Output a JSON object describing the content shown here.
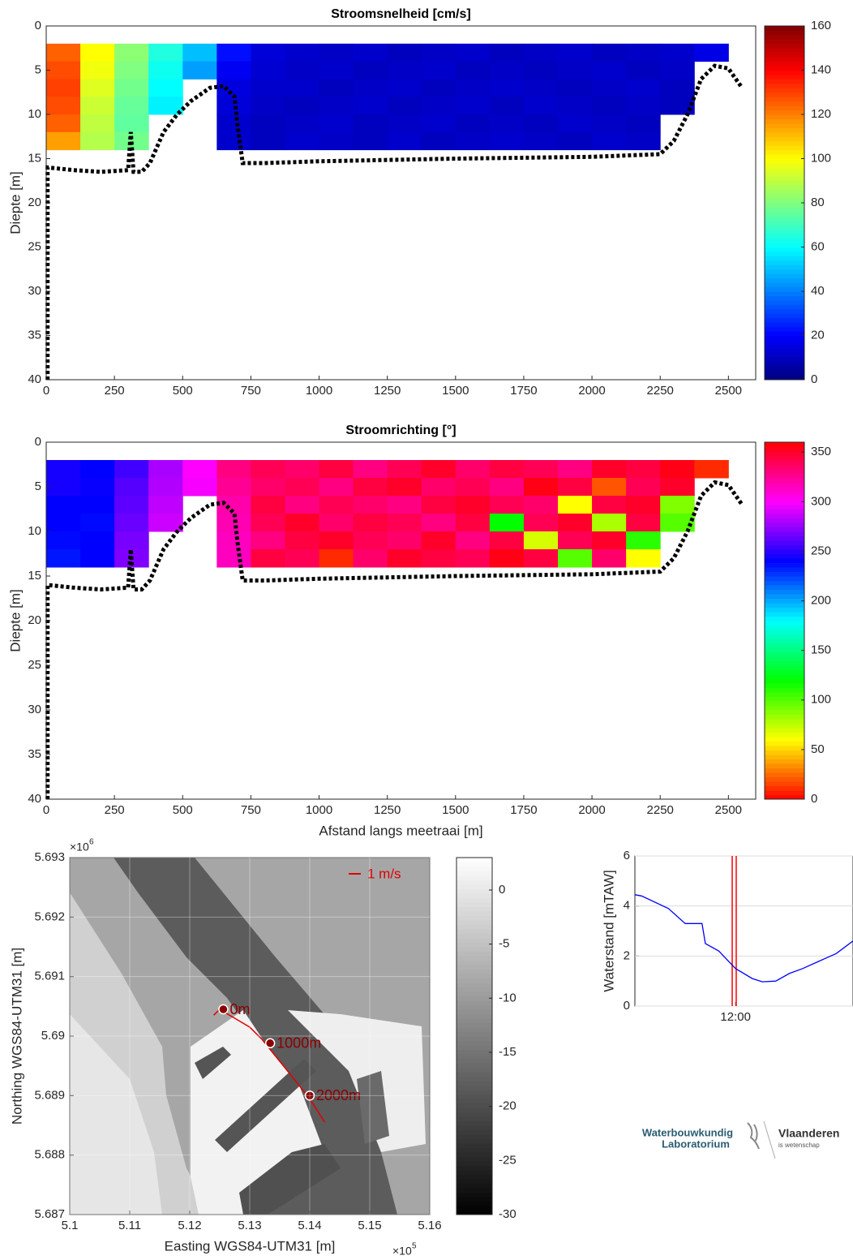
{
  "chart_data": [
    {
      "type": "heatmap",
      "title": "Stroomsnelheid [cm/s]",
      "ylabel": "Diepte [m]",
      "xlim": [
        0,
        2600
      ],
      "xticks": [
        0,
        250,
        500,
        750,
        1000,
        1250,
        1500,
        1750,
        2000,
        2250,
        2500
      ],
      "ylim": [
        0,
        40
      ],
      "yticks": [
        0,
        5,
        10,
        15,
        20,
        25,
        30,
        35,
        40
      ],
      "y_reversed": true,
      "x": [
        62.5,
        187.5,
        312.5,
        437.5,
        562.5,
        687.5,
        812.5,
        937.5,
        1062.5,
        1187.5,
        1312.5,
        1437.5,
        1562.5,
        1687.5,
        1812.5,
        1937.5,
        2062.5,
        2187.5,
        2312.5,
        2437.5
      ],
      "y": [
        3,
        5,
        7,
        9,
        11,
        13
      ],
      "z": [
        [
          125,
          100,
          82,
          65,
          50,
          22,
          14,
          12,
          11,
          12,
          10,
          11,
          12,
          10,
          11,
          12,
          10,
          11,
          12,
          16
        ],
        [
          128,
          98,
          80,
          62,
          45,
          18,
          13,
          11,
          12,
          10,
          11,
          12,
          10,
          11,
          10,
          11,
          12,
          10,
          11,
          null
        ],
        [
          130,
          95,
          78,
          60,
          null,
          15,
          12,
          12,
          10,
          11,
          12,
          10,
          11,
          12,
          11,
          10,
          11,
          12,
          10,
          null
        ],
        [
          128,
          92,
          76,
          58,
          null,
          14,
          11,
          10,
          11,
          12,
          10,
          11,
          12,
          10,
          12,
          11,
          10,
          11,
          10,
          null
        ],
        [
          125,
          90,
          75,
          null,
          null,
          12,
          10,
          11,
          12,
          10,
          11,
          12,
          10,
          11,
          10,
          12,
          11,
          10,
          null,
          null
        ],
        [
          115,
          88,
          78,
          null,
          null,
          12,
          10,
          12,
          11,
          10,
          12,
          10,
          11,
          12,
          11,
          10,
          12,
          11,
          null,
          null
        ]
      ],
      "colormap": "jet",
      "zlim": [
        0,
        160
      ],
      "zticks": [
        0,
        20,
        40,
        60,
        80,
        100,
        120,
        140,
        160
      ],
      "bed": {
        "x": [
          5,
          5,
          100,
          200,
          300,
          310,
          320,
          350,
          380,
          430,
          480,
          530,
          600,
          650,
          690,
          700,
          720,
          800,
          1000,
          1500,
          2000,
          2250,
          2300,
          2350,
          2400,
          2450,
          2500,
          2550
        ],
        "y": [
          40,
          16,
          16.3,
          16.5,
          16.3,
          12,
          16.5,
          16.5,
          15.5,
          12,
          10,
          8.5,
          7,
          6.8,
          8,
          11,
          15.5,
          15.5,
          15.3,
          15,
          14.8,
          14.5,
          13,
          10,
          6,
          4.5,
          4.8,
          7
        ]
      }
    },
    {
      "type": "heatmap",
      "title": "Stroomrichting [°]",
      "ylabel": "Diepte [m]",
      "xlabel": "Afstand langs meetraai [m]",
      "xlim": [
        0,
        2600
      ],
      "xticks": [
        0,
        250,
        500,
        750,
        1000,
        1250,
        1500,
        1750,
        2000,
        2250,
        2500
      ],
      "ylim": [
        0,
        40
      ],
      "yticks": [
        0,
        5,
        10,
        15,
        20,
        25,
        30,
        35,
        40
      ],
      "y_reversed": true,
      "x": [
        62.5,
        187.5,
        312.5,
        437.5,
        562.5,
        687.5,
        812.5,
        937.5,
        1062.5,
        1187.5,
        1312.5,
        1437.5,
        1562.5,
        1687.5,
        1812.5,
        1937.5,
        2062.5,
        2187.5,
        2312.5,
        2437.5
      ],
      "y": [
        3,
        5,
        7,
        9,
        11,
        13
      ],
      "z": [
        [
          245,
          240,
          255,
          280,
          300,
          330,
          340,
          335,
          345,
          330,
          340,
          350,
          335,
          345,
          340,
          330,
          350,
          345,
          355,
          10
        ],
        [
          245,
          242,
          260,
          282,
          298,
          325,
          335,
          340,
          330,
          345,
          350,
          335,
          340,
          330,
          355,
          345,
          20,
          340,
          350,
          null
        ],
        [
          240,
          240,
          262,
          285,
          null,
          320,
          345,
          330,
          340,
          335,
          330,
          345,
          350,
          340,
          335,
          60,
          345,
          350,
          90,
          null
        ],
        [
          240,
          238,
          265,
          288,
          null,
          318,
          340,
          350,
          335,
          345,
          340,
          330,
          345,
          120,
          340,
          350,
          80,
          345,
          100,
          null
        ],
        [
          238,
          240,
          268,
          null,
          null,
          315,
          330,
          345,
          350,
          340,
          335,
          350,
          330,
          345,
          70,
          340,
          350,
          110,
          null,
          null
        ],
        [
          235,
          240,
          270,
          null,
          null,
          315,
          345,
          340,
          10,
          335,
          350,
          345,
          340,
          355,
          345,
          100,
          335,
          60,
          null,
          null
        ]
      ],
      "colormap": "hsv",
      "zlim": [
        0,
        360
      ],
      "zticks": [
        0,
        50,
        100,
        150,
        200,
        250,
        300,
        350
      ],
      "bed": {
        "x": [
          5,
          5,
          100,
          200,
          300,
          310,
          320,
          350,
          380,
          430,
          480,
          530,
          600,
          650,
          690,
          700,
          720,
          800,
          1000,
          1500,
          2000,
          2250,
          2300,
          2350,
          2400,
          2450,
          2500,
          2550
        ],
        "y": [
          40,
          16,
          16.3,
          16.5,
          16.3,
          12,
          16.5,
          16.5,
          15.5,
          12,
          10,
          8.5,
          7,
          6.8,
          8,
          11,
          15.5,
          15.5,
          15.3,
          15,
          14.8,
          14.5,
          13,
          10,
          6,
          4.5,
          4.8,
          7
        ]
      }
    },
    {
      "type": "map",
      "xlabel": "Easting WGS84-UTM31 [m]",
      "ylabel": "Northing WGS84-UTM31 [m]",
      "xlim": [
        5.1,
        5.16
      ],
      "xticks": [
        5.1,
        5.11,
        5.12,
        5.13,
        5.14,
        5.15,
        5.16
      ],
      "x_multiplier": {
        "base": "×10",
        "exponent": "5"
      },
      "ylim": [
        5.687,
        5.693
      ],
      "yticks": [
        5.687,
        5.688,
        5.689,
        5.69,
        5.691,
        5.692,
        5.693
      ],
      "y_multiplier": {
        "base": "×10",
        "exponent": "6"
      },
      "colormap": "gray",
      "clim": [
        -30,
        3
      ],
      "cticks": [
        -30,
        -25,
        -20,
        -15,
        -10,
        -5,
        0
      ],
      "scale_label": "1 m/s",
      "track": {
        "color": "#e00000",
        "x": [
          5.124,
          5.125,
          5.1258,
          5.1275,
          5.13,
          5.132,
          5.134,
          5.136,
          5.138,
          5.14,
          5.1425
        ],
        "y": [
          5.69035,
          5.69045,
          5.6904,
          5.6903,
          5.69015,
          5.68995,
          5.6897,
          5.68945,
          5.6892,
          5.68895,
          5.68855
        ]
      },
      "stations": {
        "color": "#8b0000",
        "labels": [
          "0m",
          "1000m",
          "2000m"
        ],
        "x": [
          5.1256,
          5.1334,
          5.14
        ],
        "y": [
          5.69045,
          5.68988,
          5.689
        ]
      }
    },
    {
      "type": "line",
      "ylabel": "Waterstand [mTAW]",
      "xlim": [
        9,
        15.5
      ],
      "xticks": [
        {
          "value": 12,
          "label": "12:00"
        }
      ],
      "ylim": [
        0,
        6
      ],
      "yticks": [
        0,
        2,
        4,
        6
      ],
      "grid": true,
      "color": "#0000ff",
      "x": [
        9,
        9.2,
        10,
        10.5,
        11,
        11.1,
        11.5,
        12,
        12.5,
        12.8,
        13.2,
        13.6,
        14,
        14.5,
        15,
        15.5
      ],
      "values": [
        4.45,
        4.4,
        3.9,
        3.3,
        3.3,
        2.5,
        2.2,
        1.5,
        1.1,
        0.97,
        1.0,
        1.3,
        1.5,
        1.8,
        2.1,
        2.6
      ],
      "time_window": {
        "color": "#ff0000",
        "x": [
          11.9,
          12.02
        ]
      }
    }
  ],
  "logos": {
    "left": [
      "Waterbouwkundig",
      "Laboratorium"
    ],
    "right": "Vlaanderen",
    "right_sub": "is wetenschap"
  }
}
